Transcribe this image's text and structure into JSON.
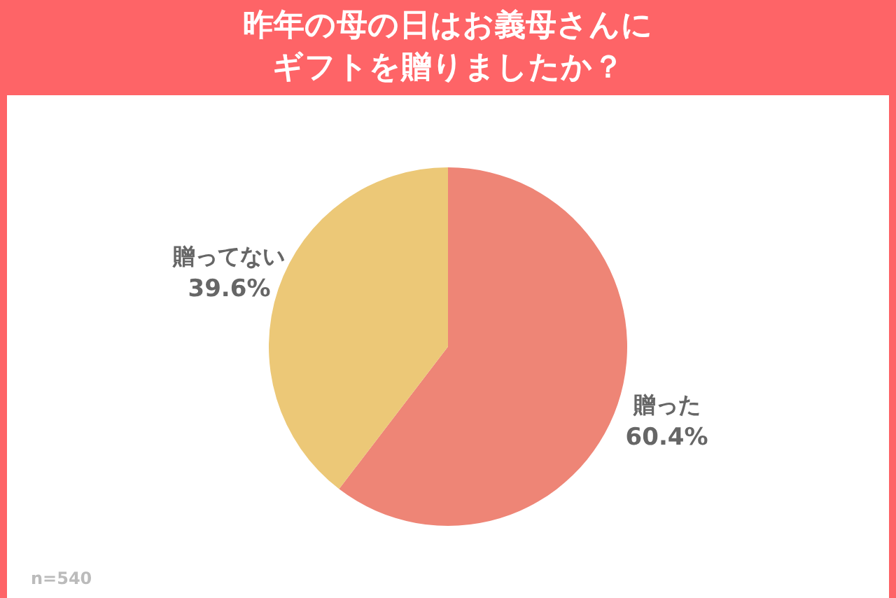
{
  "chart_data": {
    "type": "pie",
    "title": "昨年の母の日はお義母さんにギフトを贈りましたか？",
    "categories": [
      "贈った",
      "贈ってない"
    ],
    "values": [
      60.4,
      39.6
    ],
    "colors": [
      "#ee8576",
      "#ecc877"
    ],
    "value_labels": [
      "60.4%",
      "39.6%"
    ],
    "annotations": [
      "n=540"
    ]
  }
}
